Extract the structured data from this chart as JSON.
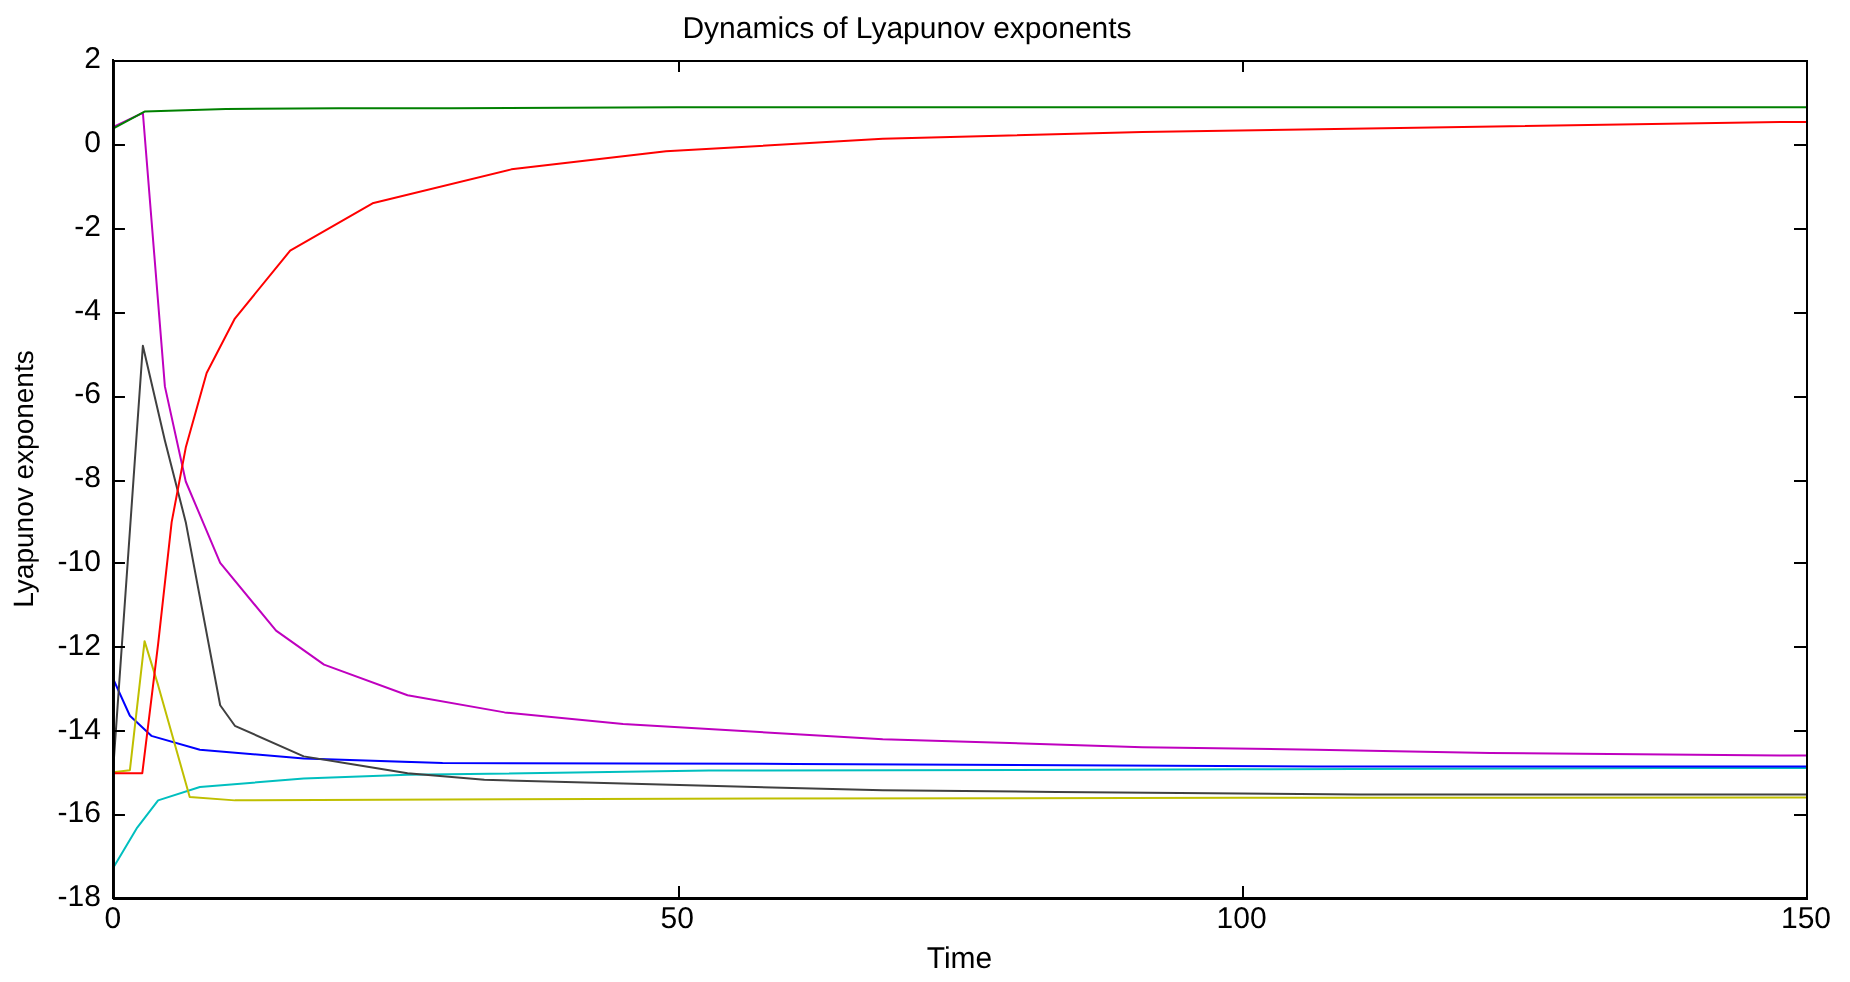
{
  "chart_data": {
    "type": "line",
    "title": "Dynamics of Lyapunov exponents",
    "xlabel": "Time",
    "ylabel": "Lyapunov exponents",
    "xlim": [
      0,
      150
    ],
    "xticks": [
      0,
      50,
      100,
      150
    ],
    "ylim": [
      -18,
      2
    ],
    "yticks": [
      -18,
      -16,
      -14,
      -12,
      -10,
      -8,
      -6,
      -4,
      -2,
      0,
      2
    ],
    "grid": false,
    "legend": false,
    "marker": "none",
    "line_style": "solid",
    "series": [
      {
        "color": "#008000",
        "x": [
          0,
          2.8,
          10,
          20,
          30,
          40,
          50,
          75,
          100,
          125,
          150
        ],
        "values": [
          0.36,
          0.77,
          0.83,
          0.85,
          0.85,
          0.86,
          0.87,
          0.87,
          0.87,
          0.87,
          0.87
        ]
      },
      {
        "color": "#ff0000",
        "x": [
          0,
          2.6,
          4,
          5.2,
          6.45,
          8.3,
          10.8,
          15.7,
          23,
          35.3,
          49,
          68.2,
          91.2,
          114,
          148,
          150
        ],
        "values": [
          -15.02,
          -15.02,
          -11.94,
          -9.03,
          -7.25,
          -5.47,
          -4.17,
          -2.55,
          -1.42,
          -0.61,
          -0.18,
          0.12,
          0.28,
          0.38,
          0.52,
          0.52
        ]
      },
      {
        "color": "#bf00bf",
        "x": [
          0,
          2.65,
          4.6,
          6.45,
          9.5,
          14.45,
          18.7,
          26.1,
          34.7,
          45.2,
          68.2,
          91.2,
          106.6,
          122,
          148,
          150
        ],
        "values": [
          0.4,
          0.74,
          -5.79,
          -8.06,
          -10,
          -11.62,
          -12.43,
          -13.16,
          -13.57,
          -13.85,
          -14.21,
          -14.4,
          -14.46,
          -14.54,
          -14.6,
          -14.6
        ]
      },
      {
        "color": "#404040",
        "x": [
          0,
          2.65,
          4.6,
          6.45,
          9.5,
          10.8,
          16.9,
          26.1,
          32.9,
          45.2,
          68.2,
          83.6,
          110.4,
          150
        ],
        "values": [
          -15,
          -4.82,
          -7.08,
          -9.03,
          -13.4,
          -13.89,
          -14.62,
          -15.02,
          -15.18,
          -15.27,
          -15.43,
          -15.47,
          -15.53,
          -15.53
        ]
      },
      {
        "color": "#bfbf00",
        "x": [
          0,
          1.5,
          2.8,
          4,
          6.8,
          10.8,
          50,
          100,
          150
        ],
        "values": [
          -15,
          -14.95,
          -11.87,
          -12.92,
          -15.59,
          -15.67,
          -15.63,
          -15.61,
          -15.6
        ]
      },
      {
        "color": "#0000ff",
        "x": [
          0,
          1.5,
          3.4,
          7.7,
          16.9,
          29.2,
          60.5,
          106.6,
          150
        ],
        "values": [
          -12.76,
          -13.65,
          -14.13,
          -14.46,
          -14.67,
          -14.78,
          -14.8,
          -14.86,
          -14.86
        ]
      },
      {
        "color": "#00bfbf",
        "x": [
          0,
          2.15,
          4,
          7.7,
          16.9,
          26.1,
          52.8,
          100,
          137,
          150
        ],
        "values": [
          -17.29,
          -16.32,
          -15.67,
          -15.35,
          -15.15,
          -15.06,
          -14.96,
          -14.93,
          -14.9,
          -14.9
        ]
      }
    ]
  }
}
